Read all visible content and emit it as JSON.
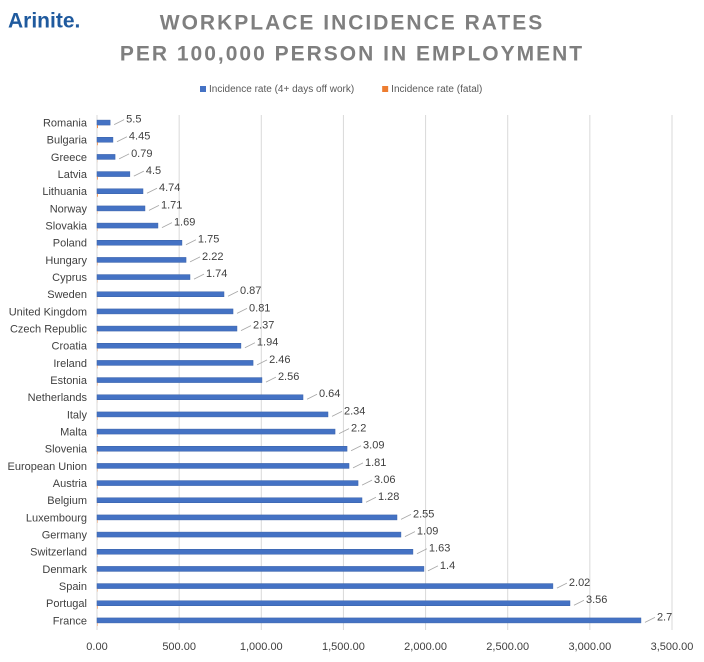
{
  "brand": "Arinite.",
  "chart_data": {
    "type": "hbar",
    "title": [
      "WORKPLACE INCIDENCE RATES",
      "PER 100,000 PERSON IN EMPLOYMENT"
    ],
    "categories": [
      "Romania",
      "Bulgaria",
      "Greece",
      "Latvia",
      "Lithuania",
      "Norway",
      "Slovakia",
      "Poland",
      "Hungary",
      "Cyprus",
      "Sweden",
      "United Kingdom",
      "Czech Republic",
      "Croatia",
      "Ireland",
      "Estonia",
      "Netherlands",
      "Italy",
      "Malta",
      "Slovenia",
      "European Union",
      "Austria",
      "Belgium",
      "Luxembourg",
      "Germany",
      "Switzerland",
      "Denmark",
      "Spain",
      "Portugal",
      "France"
    ],
    "series": [
      {
        "name": "Incidence rate (4+ days off work)",
        "color": "#4472c4",
        "values": [
          80,
          97,
          110,
          200,
          280,
          292,
          371,
          517,
          542,
          566,
          773,
          828,
          852,
          876,
          950,
          1004,
          1254,
          1406,
          1449,
          1522,
          1534,
          1589,
          1613,
          1826,
          1850,
          1923,
          1990,
          2775,
          2879,
          3311
        ]
      },
      {
        "name": "Incidence rate (fatal)",
        "color": "#ed7d31",
        "values": [
          5.5,
          4.45,
          0.79,
          4.5,
          4.74,
          1.71,
          1.69,
          1.75,
          2.22,
          1.74,
          0.87,
          0.81,
          2.37,
          1.94,
          2.46,
          2.56,
          0.64,
          2.34,
          2.2,
          3.09,
          1.81,
          3.06,
          1.28,
          2.55,
          1.09,
          1.63,
          1.4,
          2.02,
          3.56,
          2.7
        ]
      }
    ],
    "xlim": [
      0,
      3500
    ],
    "xticks": [
      {
        "value": 0,
        "label": "0.00"
      },
      {
        "value": 500,
        "label": "500.00"
      },
      {
        "value": 1000,
        "label": "1,000.00"
      },
      {
        "value": 1500,
        "label": "1,500.00"
      },
      {
        "value": 2000,
        "label": "2,000.00"
      },
      {
        "value": 2500,
        "label": "2,500.00"
      },
      {
        "value": 3000,
        "label": "3,000.00"
      },
      {
        "value": 3500,
        "label": "3,500.00"
      }
    ],
    "grid": true,
    "legend": "top"
  }
}
